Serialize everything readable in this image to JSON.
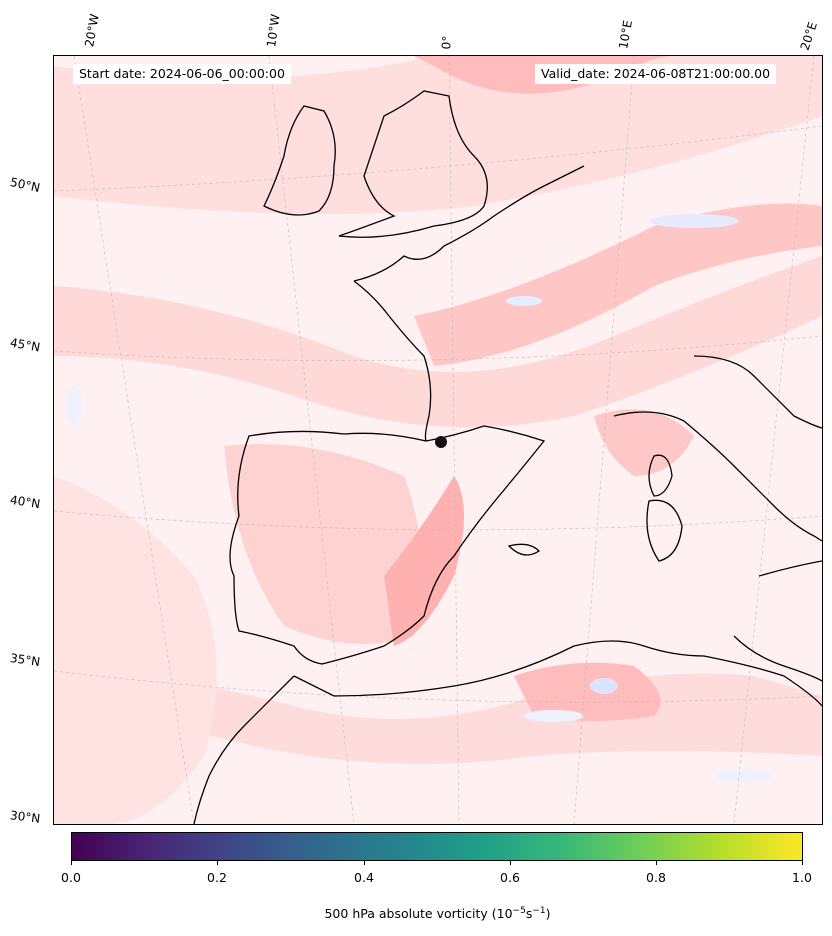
{
  "header": {
    "start_date": "Start date: 2024-06-06_00:00:00",
    "valid_date": "Valid_date: 2024-06-08T21:00:00.00"
  },
  "axes": {
    "lon_labels": [
      "20°W",
      "10°W",
      "0°",
      "10°E",
      "20°E"
    ],
    "lat_labels": [
      "50°N",
      "45°N",
      "40°N",
      "35°N",
      "30°N"
    ]
  },
  "map": {
    "region": "Western Europe / Iberia / Western Mediterranean",
    "field": "500 hPa absolute vorticity",
    "fill_colors": {
      "background": "#fff3f3",
      "light_red": "#ffd9d9",
      "mid_red": "#ffb8b8",
      "strong_red": "#ff9a9a",
      "light_blue": "#e8ecff"
    },
    "coastline_color": "#000000"
  },
  "colorbar": {
    "ticks": [
      "0.0",
      "0.2",
      "0.4",
      "0.6",
      "0.8",
      "1.0"
    ],
    "title": "500 hPa absolute vorticity (10",
    "title_sup1": "−5",
    "title_mid": "s",
    "title_sup2": "−1",
    "title_end": ")",
    "colormap": "viridis"
  }
}
